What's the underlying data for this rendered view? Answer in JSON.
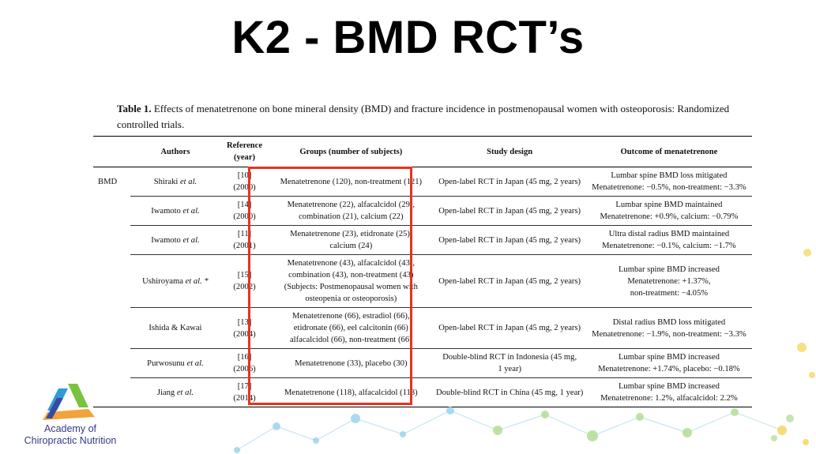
{
  "slide": {
    "title": "K2 - BMD RCT’s"
  },
  "caption": {
    "label": "Table 1.",
    "text": "Effects of menatetrenone on bone mineral density (BMD) and fracture incidence in postmenopausal women with osteoporosis: Randomized controlled trials."
  },
  "table": {
    "headers": {
      "authors": "Authors",
      "reference_line1": "Reference",
      "reference_line2": "(year)",
      "groups": "Groups (number of subjects)",
      "design": "Study design",
      "outcome": "Outcome of menatetrenone"
    },
    "section_label": "BMD",
    "rows": [
      {
        "author": "Shiraki",
        "etal": "et al.",
        "ref": "[10]",
        "year": "(2000)",
        "groups": [
          "Menatetrenone (120), non-treatment (121)"
        ],
        "design": [
          "Open-label RCT in Japan (45 mg, 2 years)"
        ],
        "outcome": [
          "Lumbar spine BMD loss mitigated",
          "Menatetrenone: −0.5%, non-treatment: −3.3%"
        ]
      },
      {
        "author": "Iwamoto",
        "etal": "et al.",
        "ref": "[14]",
        "year": "(2000)",
        "groups": [
          "Menatetrenone (22), alfacalcidol (29),",
          "combination (21), calcium (22)"
        ],
        "design": [
          "Open-label RCT in Japan (45 mg, 2 years)"
        ],
        "outcome": [
          "Lumbar spine BMD maintained",
          "Menatetrenone: +0.9%, calcium: −0.79%"
        ]
      },
      {
        "author": "Iwamoto",
        "etal": "et al.",
        "ref": "[11]",
        "year": "(2001)",
        "groups": [
          "Menatetrenone (23), etidronate (25),",
          "calcium (24)"
        ],
        "design": [
          "Open-label RCT in Japan (45 mg, 2 years)"
        ],
        "outcome": [
          "Ultra distal radius BMD maintained",
          "Menatetrenone: −0.1%, calcium: −1.7%"
        ]
      },
      {
        "author": "Ushiroyama",
        "etal": "et al. *",
        "ref": "[15]",
        "year": "(2002)",
        "groups": [
          "Menatetrenone (43), alfacalcidol (43),",
          "combination (43), non-treatment (43)",
          "(Subjects: Postmenopausal women with",
          "osteopenia or osteoporosis)"
        ],
        "design": [
          "Open-label RCT in Japan (45 mg, 2 years)"
        ],
        "outcome": [
          "Lumbar spine BMD increased",
          "Menatetrenone: +1.37%,",
          "non-treatment: −4.05%"
        ]
      },
      {
        "author": "Ishida & Kawai",
        "etal": "",
        "ref": "[13]",
        "year": "(2004)",
        "groups": [
          "Menatetrenone (66), estradiol (66),",
          "etidronate (66), eel calcitonin (66)",
          "alfacalcidol (66), non-treatment (66)"
        ],
        "design": [
          "Open-label RCT in Japan (45 mg, 2 years)"
        ],
        "outcome": [
          "Distal radius BMD loss mitigated",
          "Menatetrenone: −1.9%, non-treatment: −3.3%"
        ]
      },
      {
        "author": "Purwosunu",
        "etal": "et al.",
        "ref": "[16]",
        "year": "(2006)",
        "groups": [
          "Menatetrenone (33), placebo (30)"
        ],
        "design": [
          "Double-blind RCT in Indonesia (45 mg,",
          "1 year)"
        ],
        "outcome": [
          "Lumbar spine BMD increased",
          "Menatetrenone: +1.74%, placebo: −0.18%"
        ]
      },
      {
        "author": "Jiang",
        "etal": "et al.",
        "ref": "[17]",
        "year": "(2014)",
        "groups": [
          "Menatetrenone (118), alfacalcidol (118)"
        ],
        "design": [
          "Double-blind RCT in China (45 mg, 1 year)"
        ],
        "outcome": [
          "Lumbar spine BMD increased",
          "Menatetrenone: 1.2%, alfacalcidol: 2.2%"
        ]
      }
    ]
  },
  "logo": {
    "line1": "Academy of",
    "line2": "Chiropractic Nutrition",
    "colors": [
      "#2f9bd6",
      "#7cc242",
      "#f2a23a",
      "#3a4aa0"
    ]
  },
  "highlight": {
    "color": "#e8321e"
  }
}
